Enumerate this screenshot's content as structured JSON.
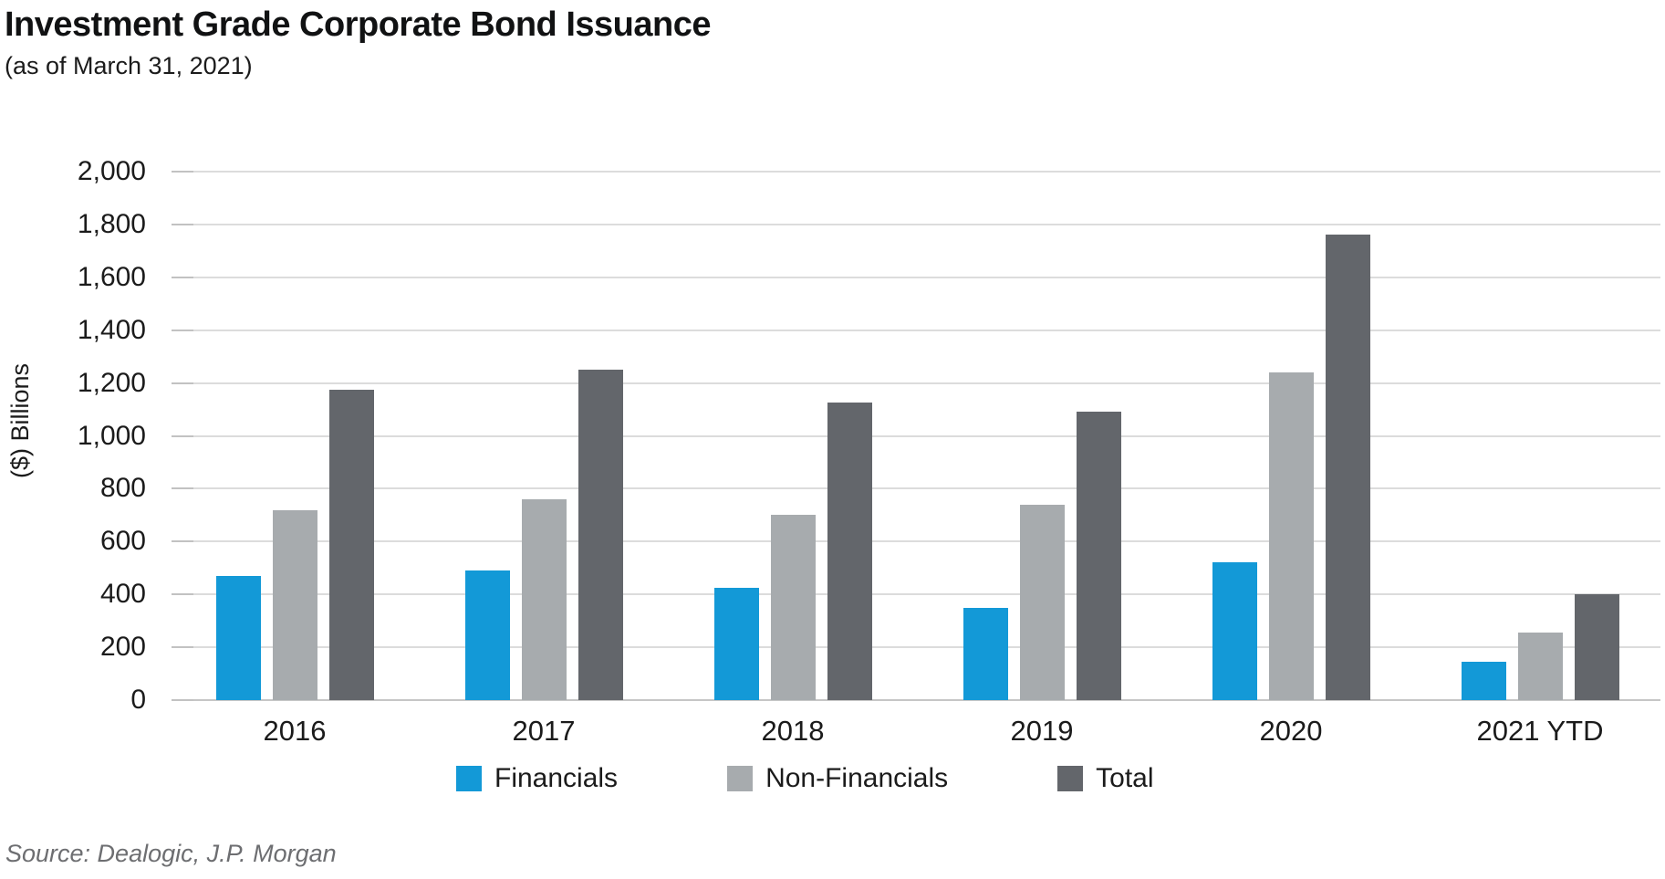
{
  "header": {
    "title": "Investment Grade Corporate Bond Issuance",
    "subtitle": "(as of March 31, 2021)"
  },
  "chart_data": {
    "type": "bar",
    "title": "Investment Grade Corporate Bond Issuance",
    "subtitle": "(as of March 31, 2021)",
    "categories": [
      "2016",
      "2017",
      "2018",
      "2019",
      "2020",
      "2021 YTD"
    ],
    "series": [
      {
        "name": "Financials",
        "color": "#1399d7",
        "values": [
          470,
          490,
          425,
          350,
          520,
          145
        ]
      },
      {
        "name": "Non-Financials",
        "color": "#a7abae",
        "values": [
          720,
          760,
          700,
          740,
          1240,
          255
        ]
      },
      {
        "name": "Total",
        "color": "#63666b",
        "values": [
          1175,
          1250,
          1125,
          1090,
          1760,
          400
        ]
      }
    ],
    "xlabel": "",
    "ylabel": "($) Billions",
    "ylim": [
      0,
      2000
    ],
    "ytick_step": 200,
    "ytick_labels": [
      "0",
      "200",
      "400",
      "600",
      "800",
      "1,000",
      "1,200",
      "1,400",
      "1,600",
      "1,800",
      "2,000"
    ],
    "grid": true,
    "legend_position": "bottom"
  },
  "footer": {
    "source": "Source: Dealogic, J.P. Morgan"
  },
  "style": {
    "grid_color": "#dcdcdc",
    "axis_color": "#c6c6c6",
    "text_color": "#1b1b1b",
    "source_color": "#6d6e71"
  }
}
